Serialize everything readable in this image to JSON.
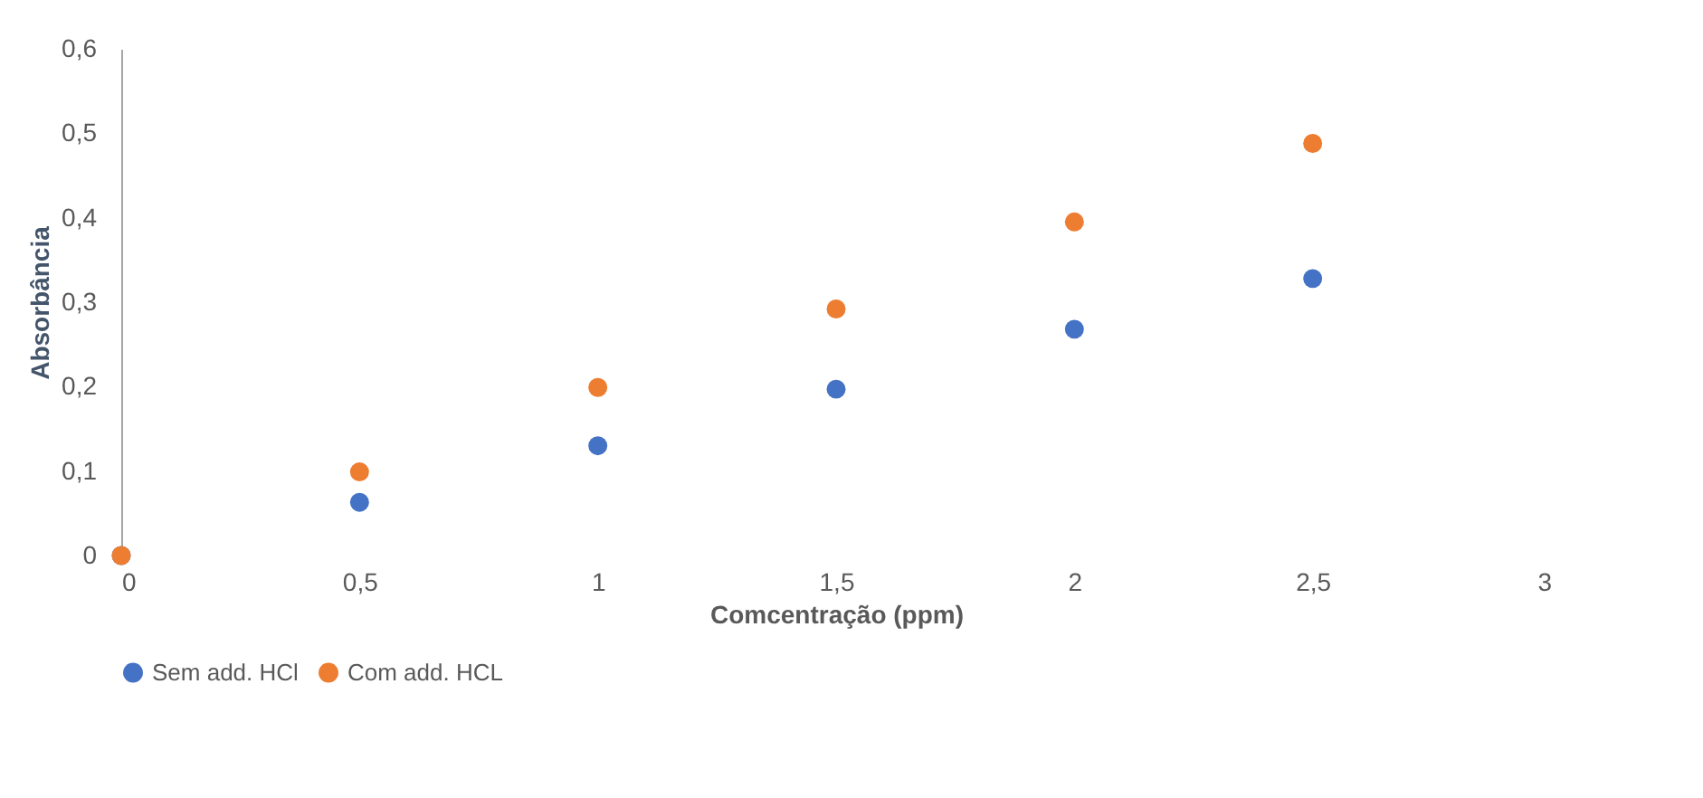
{
  "chart_data": {
    "type": "scatter",
    "xlabel": "Comcentração (ppm)",
    "ylabel": "Absorbância",
    "x": [
      0,
      0.5,
      1,
      1.5,
      2,
      2.5
    ],
    "series": [
      {
        "name": "Sem add. HCl",
        "color": "#4472c4",
        "values": [
          0,
          0.063,
          0.13,
          0.197,
          0.268,
          0.328
        ]
      },
      {
        "name": "Com add. HCL",
        "color": "#ed7d31",
        "values": [
          0,
          0.099,
          0.199,
          0.292,
          0.395,
          0.488
        ]
      }
    ],
    "xlim": [
      0,
      3
    ],
    "ylim": [
      0,
      0.6
    ],
    "xticks": [
      0,
      {
        "value": 0.5,
        "label": "0,5"
      },
      1,
      {
        "value": 1.5,
        "label": "1,5"
      },
      2,
      {
        "value": 2.5,
        "label": "2,5"
      },
      3
    ],
    "yticks": [
      0,
      {
        "value": 0.1,
        "label": "0,1"
      },
      {
        "value": 0.2,
        "label": "0,2"
      },
      {
        "value": 0.3,
        "label": "0,3"
      },
      {
        "value": 0.4,
        "label": "0,4"
      },
      {
        "value": 0.5,
        "label": "0,5"
      },
      {
        "value": 0.6,
        "label": "0,6"
      }
    ],
    "grid": false,
    "legend": "bottom",
    "marker": "circle"
  }
}
